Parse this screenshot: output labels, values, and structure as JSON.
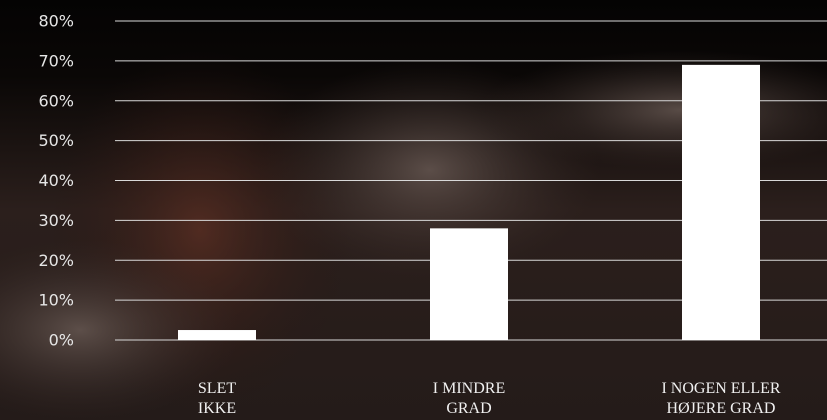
{
  "chart_data": {
    "type": "bar",
    "categories": [
      "SLET\nIKKE",
      "I MINDRE\nGRAD",
      "I NOGEN ELLER\nHØJERE GRAD"
    ],
    "values": [
      2.5,
      28,
      69
    ],
    "color": "#ffffff",
    "ylim": [
      0,
      80
    ],
    "yticks": [
      {
        "value": 0,
        "label": "0%"
      },
      {
        "value": 10,
        "label": "10%"
      },
      {
        "value": 20,
        "label": "20%"
      },
      {
        "value": 30,
        "label": "30%"
      },
      {
        "value": 40,
        "label": "40%"
      },
      {
        "value": 50,
        "label": "50%"
      },
      {
        "value": 60,
        "label": "60%"
      },
      {
        "value": 70,
        "label": "70%"
      },
      {
        "value": 80,
        "label": "80%"
      }
    ],
    "grid": true
  }
}
